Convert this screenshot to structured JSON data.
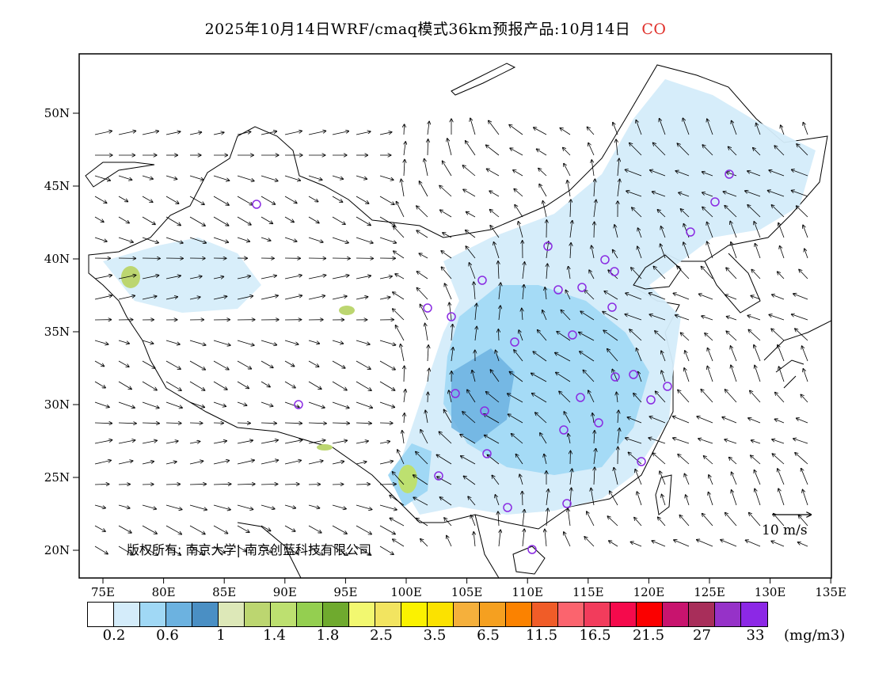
{
  "title": {
    "main": "2025年10月14日WRF/cmaq模式36km预报产品:10月14日",
    "species": "CO"
  },
  "map": {
    "lat_labels": [
      "50N",
      "45N",
      "40N",
      "35N",
      "30N",
      "25N",
      "20N"
    ],
    "lon_labels": [
      "75E",
      "80E",
      "85E",
      "90E",
      "95E",
      "100E",
      "105E",
      "110E",
      "115E",
      "120E",
      "125E",
      "130E",
      "135E"
    ],
    "wind_scale_label": "10 m/s",
    "copyright": "版权所有: 南京大学| 南京创蓝科技有限公司"
  },
  "legend": {
    "colors": [
      "#ffffff",
      "#d4ecfa",
      "#a0d8f5",
      "#6cb2e0",
      "#4a8fc4",
      "#dde8b8",
      "#bcd670",
      "#bde070",
      "#94cf50",
      "#6faa2e",
      "#f2f870",
      "#f2e460",
      "#fbf200",
      "#fbe200",
      "#f5b03c",
      "#f5a020",
      "#fb8200",
      "#f05c28",
      "#fb646e",
      "#f23c5c",
      "#f50a4c",
      "#fb0000",
      "#c8146e",
      "#a82e5a",
      "#9632c8",
      "#8c28e6"
    ],
    "labels": [
      "0.2",
      "0.6",
      "1",
      "1.4",
      "1.8",
      "2.5",
      "3.5",
      "6.5",
      "11.5",
      "16.5",
      "21.5",
      "27",
      "33"
    ],
    "unit": "(mg/m3)"
  }
}
